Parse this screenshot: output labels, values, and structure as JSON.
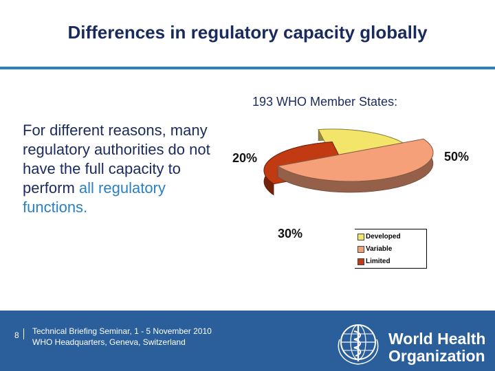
{
  "slide": {
    "title": "Differences in regulatory capacity globally",
    "subtitle": "193 WHO Member States:",
    "body": {
      "part1": "For different reasons, many regulatory authorities do not have the full capacity to perform ",
      "part2": "all regulatory functions",
      "part3": "."
    }
  },
  "chart_data": {
    "type": "pie",
    "labels": [
      "Developed",
      "Variable",
      "Limited"
    ],
    "values": [
      20,
      50,
      30
    ],
    "data_labels": [
      "20%",
      "50%",
      "30%"
    ],
    "colors": [
      "#f3e56a",
      "#f6a07a",
      "#c23a12"
    ],
    "legend_position": "bottom-right"
  },
  "footer": {
    "page_number": "8",
    "line1": "Technical Briefing Seminar, 1 - 5 November 2010",
    "line2": "WHO Headquarters, Geneva, Switzerland",
    "org_line1": "World Health",
    "org_line2": "Organization"
  }
}
